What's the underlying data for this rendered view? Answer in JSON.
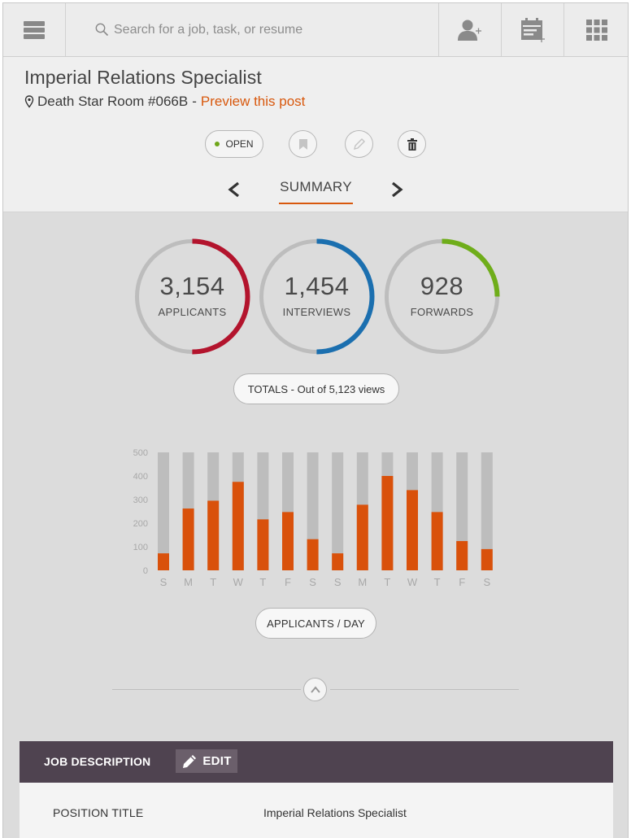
{
  "topbar": {
    "search_placeholder": "Search for a job, task, or resume",
    "icons": [
      "menu-icon",
      "search-icon",
      "add-user-icon",
      "calendar-add-icon",
      "apps-grid-icon"
    ]
  },
  "job": {
    "title": "Imperial Relations Specialist",
    "location": "Death Star Room #066B",
    "separator": "-",
    "preview_link": "Preview this post",
    "status": "OPEN"
  },
  "nav": {
    "current": "SUMMARY"
  },
  "totals": [
    {
      "value": "3,154",
      "label": "APPLICANTS",
      "fraction": 0.5,
      "color": "#b3142d"
    },
    {
      "value": "1,454",
      "label": "INTERVIEWS",
      "fraction": 0.5,
      "color": "#1b6faf"
    },
    {
      "value": "928",
      "label": "FORWARDS",
      "fraction": 0.25,
      "color": "#6fad1a"
    }
  ],
  "totals_pill": "TOTALS - Out of 5,123 views",
  "chart_data": {
    "type": "bar",
    "categories": [
      "S",
      "M",
      "T",
      "W",
      "T",
      "F",
      "S",
      "S",
      "M",
      "T",
      "W",
      "T",
      "F",
      "S"
    ],
    "values": [
      72,
      262,
      295,
      375,
      216,
      247,
      132,
      72,
      278,
      400,
      340,
      247,
      124,
      90
    ],
    "max_values": [
      500,
      500,
      500,
      500,
      500,
      500,
      500,
      500,
      500,
      500,
      500,
      500,
      500,
      500
    ],
    "yticks": [
      "500",
      "400",
      "300",
      "200",
      "100",
      "0"
    ],
    "ylim": [
      0,
      500
    ],
    "colors": {
      "value": "#d9510b",
      "track": "#bdbdbd"
    },
    "title": "",
    "xlabel": "",
    "ylabel": ""
  },
  "chart_caption": "APPLICANTS / DAY",
  "job_description": {
    "title": "JOB DESCRIPTION",
    "edit_label": "EDIT",
    "rows": [
      {
        "label": "POSITION TITLE",
        "value": "Imperial Relations Specialist"
      }
    ]
  }
}
